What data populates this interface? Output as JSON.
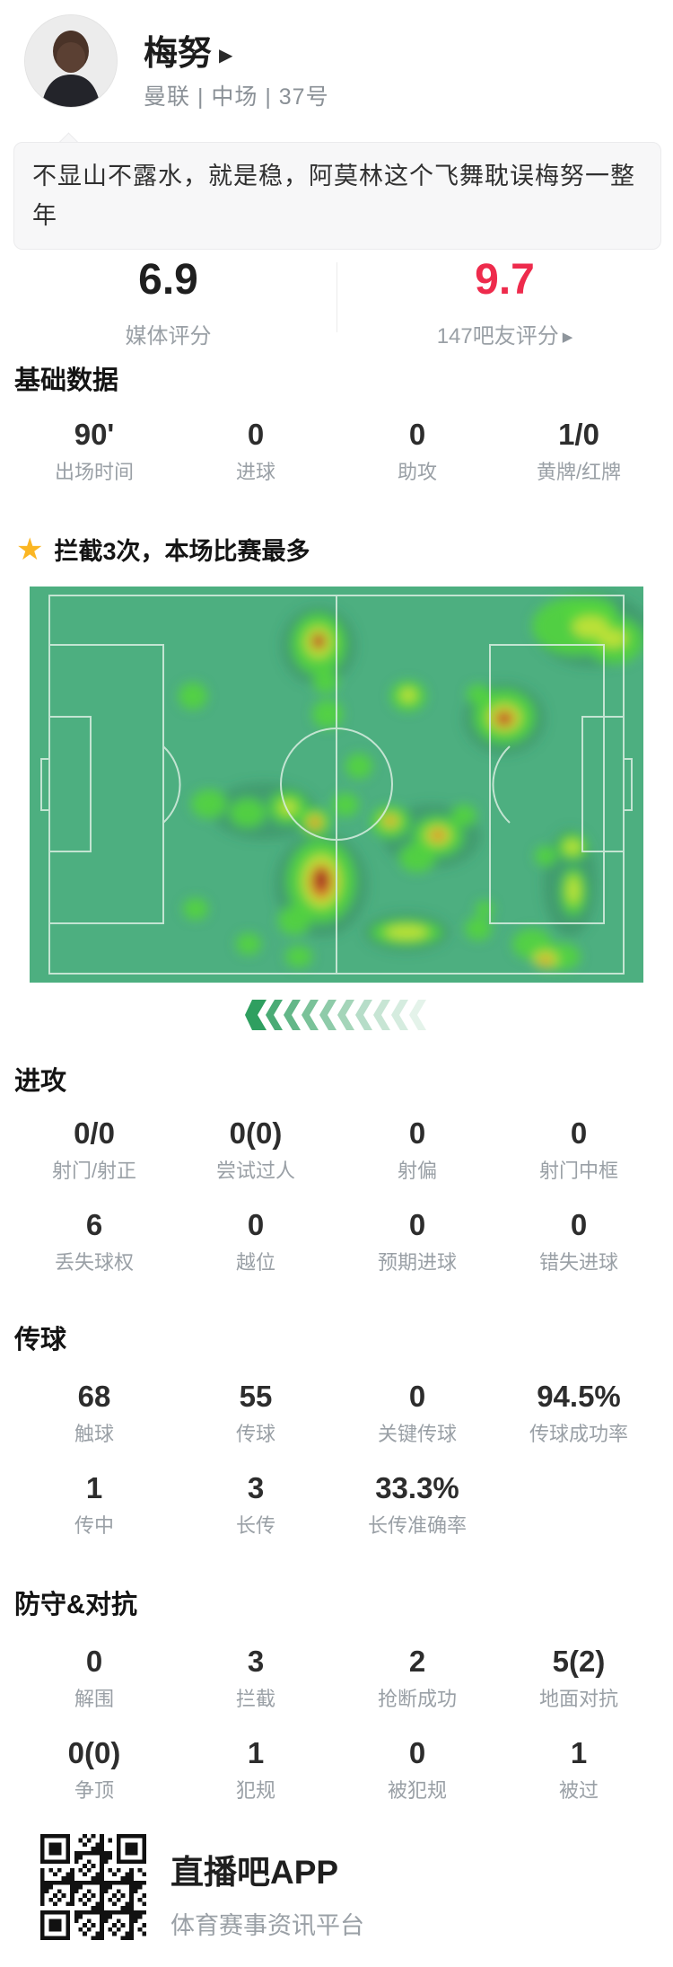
{
  "player": {
    "name": "梅努",
    "team_info": "曼联 | 中场 | 37号"
  },
  "comment": "不显山不露水，就是稳，阿莫林这个飞舞耽误梅努一整年",
  "ratings": {
    "media_score": "6.9",
    "media_label": "媒体评分",
    "fan_score": "9.7",
    "fan_label": "147吧友评分"
  },
  "icons": {
    "name_arrow": "▶",
    "fan_arrow": "▶",
    "star": "★"
  },
  "sections": {
    "basic": {
      "title": "基础数据",
      "stats": [
        {
          "value": "90'",
          "label": "出场时间"
        },
        {
          "value": "0",
          "label": "进球"
        },
        {
          "value": "0",
          "label": "助攻"
        },
        {
          "value": "1/0",
          "label": "黄牌/红牌"
        }
      ]
    },
    "highlight": {
      "text": "拦截3次，本场比赛最多"
    },
    "attack": {
      "title": "进攻",
      "stats": [
        {
          "value": "0/0",
          "label": "射门/射正"
        },
        {
          "value": "0(0)",
          "label": "尝试过人"
        },
        {
          "value": "0",
          "label": "射偏"
        },
        {
          "value": "0",
          "label": "射门中框"
        },
        {
          "value": "6",
          "label": "丢失球权"
        },
        {
          "value": "0",
          "label": "越位"
        },
        {
          "value": "0",
          "label": "预期进球"
        },
        {
          "value": "0",
          "label": "错失进球"
        }
      ]
    },
    "passing": {
      "title": "传球",
      "stats": [
        {
          "value": "68",
          "label": "触球"
        },
        {
          "value": "55",
          "label": "传球"
        },
        {
          "value": "0",
          "label": "关键传球"
        },
        {
          "value": "94.5%",
          "label": "传球成功率"
        },
        {
          "value": "1",
          "label": "传中"
        },
        {
          "value": "3",
          "label": "长传"
        },
        {
          "value": "33.3%",
          "label": "长传准确率"
        }
      ]
    },
    "defense": {
      "title": "防守&对抗",
      "stats": [
        {
          "value": "0",
          "label": "解围"
        },
        {
          "value": "3",
          "label": "拦截"
        },
        {
          "value": "2",
          "label": "抢断成功"
        },
        {
          "value": "5(2)",
          "label": "地面对抗"
        },
        {
          "value": "0(0)",
          "label": "争顶"
        },
        {
          "value": "1",
          "label": "犯规"
        },
        {
          "value": "0",
          "label": "被犯规"
        },
        {
          "value": "1",
          "label": "被过"
        }
      ]
    }
  },
  "footer": {
    "app_name": "直播吧APP",
    "app_desc": "体育赛事资讯平台"
  },
  "colors": {
    "fan_score_red": "#ee2b4c",
    "star_gold": "#fbb623",
    "pitch_green": "#4daf80",
    "chevron_green": "#2f9f60"
  },
  "heatmap": {
    "palette": {
      "halo": "#37855c",
      "g": "#53d43e",
      "y": "#c4e238",
      "o": "#dd8b2d",
      "r": "#bf3a28",
      "d": "#8f2c1d"
    },
    "opacity": {
      "halo": 0.45,
      "g": 0.9,
      "y": 0.92,
      "o": 0.9,
      "r": 0.95,
      "d": 0.95
    },
    "blobs": [
      [
        322,
        66,
        42,
        44,
        "halo"
      ],
      [
        627,
        48,
        64,
        42,
        "halo"
      ],
      [
        529,
        147,
        46,
        40,
        "halo"
      ],
      [
        325,
        332,
        52,
        58,
        "halo"
      ],
      [
        448,
        278,
        55,
        36,
        "halo"
      ],
      [
        262,
        250,
        60,
        32,
        "halo"
      ],
      [
        420,
        385,
        48,
        22,
        "halo"
      ],
      [
        602,
        330,
        30,
        60,
        "halo"
      ],
      [
        322,
        64,
        30,
        34,
        "g"
      ],
      [
        330,
        106,
        14,
        13,
        "g"
      ],
      [
        608,
        44,
        48,
        32,
        "g"
      ],
      [
        652,
        60,
        32,
        26,
        "g"
      ],
      [
        625,
        30,
        30,
        18,
        "g"
      ],
      [
        182,
        122,
        16,
        15,
        "g"
      ],
      [
        332,
        142,
        17,
        16,
        "g"
      ],
      [
        422,
        122,
        20,
        17,
        "g"
      ],
      [
        500,
        120,
        13,
        11,
        "g"
      ],
      [
        529,
        145,
        34,
        30,
        "g"
      ],
      [
        367,
        200,
        15,
        14,
        "g"
      ],
      [
        200,
        242,
        20,
        16,
        "g"
      ],
      [
        243,
        252,
        20,
        16,
        "g"
      ],
      [
        288,
        246,
        22,
        18,
        "g"
      ],
      [
        318,
        262,
        18,
        16,
        "g"
      ],
      [
        352,
        243,
        15,
        13,
        "g"
      ],
      [
        325,
        328,
        38,
        46,
        "g"
      ],
      [
        295,
        372,
        18,
        16,
        "g"
      ],
      [
        185,
        359,
        14,
        12,
        "g"
      ],
      [
        244,
        398,
        14,
        12,
        "g"
      ],
      [
        300,
        412,
        15,
        12,
        "g"
      ],
      [
        402,
        262,
        22,
        18,
        "g"
      ],
      [
        455,
        278,
        28,
        22,
        "g"
      ],
      [
        432,
        302,
        20,
        16,
        "g"
      ],
      [
        420,
        385,
        40,
        14,
        "g"
      ],
      [
        500,
        381,
        15,
        13,
        "g"
      ],
      [
        507,
        359,
        10,
        9,
        "g"
      ],
      [
        605,
        290,
        17,
        15,
        "g"
      ],
      [
        606,
        340,
        14,
        26,
        "g"
      ],
      [
        560,
        398,
        22,
        17,
        "g"
      ],
      [
        592,
        412,
        22,
        15,
        "g"
      ],
      [
        575,
        300,
        12,
        11,
        "g"
      ],
      [
        484,
        255,
        14,
        12,
        "g"
      ],
      [
        322,
        62,
        16,
        18,
        "y"
      ],
      [
        625,
        45,
        20,
        12,
        "y"
      ],
      [
        650,
        58,
        16,
        10,
        "y"
      ],
      [
        529,
        146,
        19,
        16,
        "y"
      ],
      [
        422,
        121,
        9,
        8,
        "y"
      ],
      [
        318,
        262,
        10,
        9,
        "y"
      ],
      [
        325,
        328,
        22,
        30,
        "y"
      ],
      [
        402,
        261,
        11,
        9,
        "y"
      ],
      [
        455,
        277,
        15,
        12,
        "y"
      ],
      [
        420,
        385,
        24,
        8,
        "y"
      ],
      [
        605,
        290,
        9,
        8,
        "y"
      ],
      [
        606,
        338,
        7,
        16,
        "y"
      ],
      [
        575,
        415,
        14,
        10,
        "y"
      ],
      [
        288,
        246,
        10,
        8,
        "y"
      ],
      [
        529,
        147,
        12,
        10,
        "o"
      ],
      [
        455,
        277,
        9,
        7,
        "o"
      ],
      [
        402,
        261,
        6,
        5,
        "o"
      ],
      [
        318,
        263,
        7,
        6,
        "o"
      ],
      [
        325,
        329,
        14,
        20,
        "o"
      ],
      [
        575,
        416,
        7,
        5,
        "o"
      ],
      [
        322,
        61,
        8,
        9,
        "r"
      ],
      [
        529,
        147,
        7,
        6,
        "r"
      ],
      [
        325,
        327,
        9,
        14,
        "r"
      ],
      [
        325,
        326,
        5,
        9,
        "d"
      ],
      [
        529,
        147,
        4,
        3,
        "d"
      ]
    ]
  }
}
